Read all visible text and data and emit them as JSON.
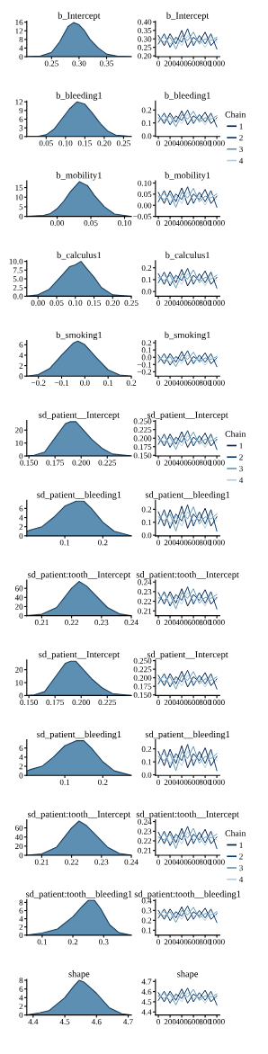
{
  "chart_data": [
    {
      "type": "area",
      "title": "b_Intercept",
      "x": [
        0.205,
        0.23,
        0.25,
        0.265,
        0.28,
        0.29,
        0.3,
        0.31,
        0.32,
        0.335,
        0.35,
        0.37,
        0.395
      ],
      "series": [
        {
          "color": "#5c8fb1",
          "values": [
            0,
            0.3,
            2,
            7,
            14,
            15.8,
            14.8,
            12,
            8,
            4,
            1.2,
            0.2,
            0
          ]
        }
      ],
      "xlim": [
        0.205,
        0.395
      ],
      "ylim": [
        0,
        16.5
      ],
      "xticks": [
        {
          "value": 0.25,
          "label": "0.25"
        },
        {
          "value": 0.3,
          "label": "0.30"
        },
        {
          "value": 0.35,
          "label": "0.35"
        }
      ],
      "yticks": [
        0,
        4,
        8,
        12,
        16
      ]
    },
    {
      "type": "line",
      "title": "b_Intercept",
      "x": [
        0,
        100,
        200,
        300,
        400,
        500,
        600,
        700,
        800,
        900,
        1000
      ],
      "series": [
        {
          "color": "#011f4b",
          "values": [
            0.32,
            0.26,
            0.33,
            0.27,
            0.35,
            0.25,
            0.31,
            0.28,
            0.34,
            0.26,
            0.3
          ]
        },
        {
          "color": "#03396c",
          "values": [
            0.27,
            0.33,
            0.25,
            0.31,
            0.28,
            0.36,
            0.26,
            0.32,
            0.27,
            0.33,
            0.24
          ]
        },
        {
          "color": "#6497b1",
          "values": [
            0.3,
            0.28,
            0.31,
            0.24,
            0.32,
            0.29,
            0.34,
            0.27,
            0.3,
            0.29,
            0.31
          ]
        },
        {
          "color": "#b3cde0",
          "values": [
            0.29,
            0.31,
            0.27,
            0.3,
            0.26,
            0.32,
            0.28,
            0.3,
            0.25,
            0.31,
            0.28
          ]
        }
      ],
      "xlim": [
        -50,
        1050
      ],
      "ylim": [
        0.195,
        0.405
      ],
      "xticks": [
        0,
        200,
        400,
        600,
        800,
        1000
      ],
      "yticks": [
        {
          "value": 0.2,
          "label": "0.20"
        },
        {
          "value": 0.25,
          "label": "0.25"
        },
        {
          "value": 0.3,
          "label": "0.30"
        },
        {
          "value": 0.35,
          "label": "0.35"
        },
        {
          "value": 0.4,
          "label": "0.40"
        }
      ]
    },
    {
      "type": "area",
      "title": "b_bleeding1",
      "x": [
        0,
        0.03,
        0.05,
        0.07,
        0.09,
        0.11,
        0.13,
        0.15,
        0.17,
        0.19,
        0.21,
        0.23,
        0.27
      ],
      "series": [
        {
          "color": "#5c8fb1",
          "values": [
            0,
            0.1,
            0.6,
            2.5,
            6,
            9.5,
            12,
            11.2,
            8,
            4.5,
            1.8,
            0.5,
            0
          ]
        }
      ],
      "xlim": [
        0,
        0.27
      ],
      "ylim": [
        0,
        12.3
      ],
      "xticks": [
        {
          "value": 0.05,
          "label": "0.05"
        },
        {
          "value": 0.1,
          "label": "0.10"
        },
        {
          "value": 0.15,
          "label": "0.15"
        },
        {
          "value": 0.2,
          "label": "0.20"
        },
        {
          "value": 0.25,
          "label": "0.25"
        }
      ],
      "yticks": [
        0,
        3,
        6,
        9,
        12
      ]
    },
    {
      "type": "line",
      "title": "b_bleeding1",
      "x": [
        0,
        100,
        200,
        300,
        400,
        500,
        600,
        700,
        800,
        900,
        1000
      ],
      "series": [
        {
          "name": "1",
          "color": "#011f4b",
          "values": [
            0.165,
            0.095,
            0.176,
            0.106,
            0.193,
            0.085,
            0.155,
            0.12,
            0.183,
            0.095,
            0.14
          ]
        },
        {
          "name": "2",
          "color": "#03396c",
          "values": [
            0.106,
            0.176,
            0.085,
            0.155,
            0.12,
            0.2,
            0.095,
            0.165,
            0.106,
            0.176,
            0.07
          ]
        },
        {
          "name": "3",
          "color": "#6497b1",
          "values": [
            0.14,
            0.12,
            0.155,
            0.07,
            0.165,
            0.13,
            0.19,
            0.106,
            0.14,
            0.13,
            0.155
          ]
        },
        {
          "name": "4",
          "color": "#b3cde0",
          "values": [
            0.13,
            0.155,
            0.106,
            0.14,
            0.095,
            0.165,
            0.12,
            0.14,
            0.085,
            0.155,
            0.12
          ]
        }
      ],
      "xlim": [
        -50,
        1050
      ],
      "ylim": [
        -0.005,
        0.27
      ],
      "xticks": [
        0,
        200,
        400,
        600,
        800,
        1000
      ],
      "yticks": [
        {
          "value": 0,
          "label": "0.0"
        },
        0.1,
        0.2
      ],
      "legend": "right",
      "legend_title": "Chain"
    },
    {
      "type": "area",
      "title": "b_mobility1",
      "x": [
        -0.045,
        -0.02,
        -0.01,
        0,
        0.01,
        0.02,
        0.033,
        0.045,
        0.055,
        0.07,
        0.085,
        0.11
      ],
      "series": [
        {
          "color": "#5c8fb1",
          "values": [
            0,
            0.5,
            1.5,
            4,
            8,
            13,
            18,
            16,
            11,
            5,
            1.2,
            0
          ]
        }
      ],
      "xlim": [
        -0.045,
        0.11
      ],
      "ylim": [
        0,
        18.5
      ],
      "xticks": [
        {
          "value": 0,
          "label": "0.00"
        },
        {
          "value": 0.05,
          "label": "0.05"
        },
        {
          "value": 0.1,
          "label": "0.10"
        }
      ],
      "yticks": [
        0,
        5,
        10,
        15
      ]
    },
    {
      "type": "line",
      "title": "b_mobility1",
      "x": [
        0,
        100,
        200,
        300,
        400,
        500,
        600,
        700,
        800,
        900,
        1000
      ],
      "series": [
        {
          "color": "#011f4b",
          "values": [
            0.058,
            0.008,
            0.066,
            0.016,
            0.078,
            0.001,
            0.051,
            0.026,
            0.071,
            0.008,
            0.041
          ]
        },
        {
          "color": "#03396c",
          "values": [
            0.016,
            0.066,
            0.001,
            0.051,
            0.026,
            0.083,
            0.008,
            0.058,
            0.016,
            0.066,
            -0.009
          ]
        },
        {
          "color": "#6497b1",
          "values": [
            0.041,
            0.026,
            0.051,
            -0.009,
            0.058,
            0.033,
            0.076,
            0.016,
            0.041,
            0.033,
            0.051
          ]
        },
        {
          "color": "#b3cde0",
          "values": [
            0.033,
            0.051,
            0.016,
            0.041,
            0.008,
            0.058,
            0.026,
            0.041,
            0.001,
            0.051,
            0.026
          ]
        }
      ],
      "xlim": [
        -50,
        1050
      ],
      "ylim": [
        -0.05,
        0.11
      ],
      "xticks": [
        0,
        200,
        400,
        600,
        800,
        1000
      ],
      "yticks": [
        {
          "value": -0.05,
          "label": "−0.05"
        },
        {
          "value": 0,
          "label": "0.00"
        },
        {
          "value": 0.05,
          "label": "0.05"
        },
        {
          "value": 0.1,
          "label": "0.10"
        }
      ]
    },
    {
      "type": "area",
      "title": "b_calculus1",
      "x": [
        -0.03,
        0,
        0.03,
        0.06,
        0.085,
        0.1,
        0.115,
        0.13,
        0.15,
        0.17,
        0.2,
        0.25
      ],
      "series": [
        {
          "color": "#5c8fb1",
          "values": [
            0,
            0.4,
            2,
            5.5,
            8.5,
            9,
            10,
            8,
            5.5,
            2.5,
            0.4,
            0
          ]
        }
      ],
      "xlim": [
        -0.03,
        0.25
      ],
      "ylim": [
        0,
        10.2
      ],
      "xticks": [
        {
          "value": 0,
          "label": "0.00"
        },
        {
          "value": 0.05,
          "label": "0.05"
        },
        {
          "value": 0.1,
          "label": "0.10"
        },
        {
          "value": 0.15,
          "label": "0.15"
        },
        {
          "value": 0.2,
          "label": "0.20"
        },
        {
          "value": 0.25,
          "label": "0.25"
        }
      ],
      "yticks": [
        {
          "value": 0,
          "label": "0.0"
        },
        2.5,
        {
          "value": 5,
          "label": "5.0"
        },
        7.5,
        {
          "value": 10,
          "label": "10.0"
        }
      ]
    },
    {
      "type": "line",
      "title": "b_calculus1",
      "x": [
        0,
        100,
        200,
        300,
        400,
        500,
        600,
        700,
        800,
        900,
        1000
      ],
      "series": [
        {
          "color": "#011f4b",
          "values": [
            0.15,
            0.06,
            0.164,
            0.074,
            0.186,
            0.047,
            0.137,
            0.092,
            0.173,
            0.06,
            0.119
          ]
        },
        {
          "color": "#03396c",
          "values": [
            0.074,
            0.164,
            0.047,
            0.137,
            0.092,
            0.195,
            0.06,
            0.15,
            0.074,
            0.164,
            0.029
          ]
        },
        {
          "color": "#6497b1",
          "values": [
            0.119,
            0.092,
            0.137,
            0.029,
            0.15,
            0.105,
            0.182,
            0.074,
            0.119,
            0.105,
            0.137
          ]
        },
        {
          "color": "#b3cde0",
          "values": [
            0.105,
            0.137,
            0.074,
            0.119,
            0.06,
            0.15,
            0.092,
            0.119,
            0.047,
            0.137,
            0.092
          ]
        }
      ],
      "xlim": [
        -50,
        1050
      ],
      "ylim": [
        -0.04,
        0.26
      ],
      "xticks": [
        0,
        200,
        400,
        600,
        800,
        1000
      ],
      "yticks": [
        {
          "value": 0,
          "label": "0.0"
        },
        0.1,
        0.2
      ]
    },
    {
      "type": "area",
      "title": "b_smoking1",
      "x": [
        -0.25,
        -0.2,
        -0.15,
        -0.1,
        -0.05,
        -0.03,
        0,
        0.05,
        0.1,
        0.15,
        0.2
      ],
      "series": [
        {
          "color": "#5c8fb1",
          "values": [
            0,
            0.3,
            1.5,
            4,
            6.3,
            6.7,
            6,
            3.5,
            1.2,
            0.2,
            0
          ]
        }
      ],
      "xlim": [
        -0.25,
        0.2
      ],
      "ylim": [
        0,
        6.8
      ],
      "xticks": [
        {
          "value": -0.2,
          "label": "−0.2"
        },
        {
          "value": -0.1,
          "label": "−0.1"
        },
        {
          "value": 0,
          "label": "0.0"
        },
        {
          "value": 0.1,
          "label": "0.1"
        },
        {
          "value": 0.2,
          "label": "0.2"
        }
      ],
      "yticks": [
        0,
        2,
        4,
        6
      ]
    },
    {
      "type": "line",
      "title": "b_smoking1",
      "x": [
        0,
        100,
        200,
        300,
        400,
        500,
        600,
        700,
        800,
        900,
        1000
      ],
      "series": [
        {
          "color": "#011f4b",
          "values": [
            0.03,
            -0.09,
            0.05,
            -0.07,
            0.08,
            -0.11,
            0.01,
            -0.05,
            0.06,
            -0.09,
            -0.01
          ]
        },
        {
          "color": "#03396c",
          "values": [
            -0.07,
            0.05,
            -0.11,
            0.01,
            -0.05,
            0.09,
            -0.09,
            0.03,
            -0.07,
            0.05,
            -0.13
          ]
        },
        {
          "color": "#6497b1",
          "values": [
            -0.01,
            -0.05,
            0.01,
            -0.13,
            0.03,
            -0.03,
            0.07,
            -0.07,
            -0.01,
            -0.03,
            0.01
          ]
        },
        {
          "color": "#b3cde0",
          "values": [
            -0.03,
            0.01,
            -0.07,
            -0.01,
            -0.09,
            0.03,
            -0.05,
            -0.01,
            -0.11,
            0.01,
            -0.05
          ]
        }
      ],
      "xlim": [
        -50,
        1050
      ],
      "ylim": [
        -0.26,
        0.23
      ],
      "xticks": [
        0,
        200,
        400,
        600,
        800,
        1000
      ],
      "yticks": [
        {
          "value": -0.2,
          "label": "−0.2"
        },
        {
          "value": -0.1,
          "label": "−0.1"
        },
        {
          "value": 0,
          "label": "0.0"
        },
        {
          "value": 0.1,
          "label": "0.1"
        },
        {
          "value": 0.2,
          "label": "0.2"
        }
      ]
    },
    {
      "type": "area",
      "title": "sd_patient__Intercept",
      "x": [
        0.148,
        0.155,
        0.165,
        0.175,
        0.185,
        0.19,
        0.195,
        0.2,
        0.21,
        0.22,
        0.23,
        0.248
      ],
      "series": [
        {
          "color": "#5c8fb1",
          "values": [
            0,
            0.5,
            3,
            14,
            25,
            26.5,
            26.5,
            22,
            13,
            6,
            1.5,
            0
          ]
        }
      ],
      "xlim": [
        0.148,
        0.248
      ],
      "ylim": [
        0,
        27.5
      ],
      "xticks": [
        {
          "value": 0.15,
          "label": "0.150"
        },
        {
          "value": 0.175,
          "label": "0.175"
        },
        {
          "value": 0.2,
          "label": "0.200"
        },
        {
          "value": 0.225,
          "label": "0.225"
        }
      ],
      "yticks": [
        0,
        10,
        20
      ]
    },
    {
      "type": "line",
      "title": "sd_patient__Intercept",
      "x": [
        0,
        100,
        200,
        300,
        400,
        500,
        600,
        700,
        800,
        900,
        1000
      ],
      "series": [
        {
          "name": "1",
          "color": "#011f4b",
          "values": [
            0.207,
            0.177,
            0.212,
            0.182,
            0.219,
            0.173,
            0.203,
            0.188,
            0.215,
            0.177,
            0.197
          ]
        },
        {
          "name": "2",
          "color": "#03396c",
          "values": [
            0.182,
            0.212,
            0.173,
            0.203,
            0.188,
            0.222,
            0.177,
            0.207,
            0.182,
            0.212,
            0.167
          ]
        },
        {
          "name": "3",
          "color": "#6497b1",
          "values": [
            0.197,
            0.188,
            0.203,
            0.167,
            0.207,
            0.192,
            0.218,
            0.182,
            0.197,
            0.192,
            0.203
          ]
        },
        {
          "name": "4",
          "color": "#b3cde0",
          "values": [
            0.192,
            0.203,
            0.182,
            0.197,
            0.177,
            0.207,
            0.188,
            0.197,
            0.173,
            0.203,
            0.188
          ]
        }
      ],
      "xlim": [
        -50,
        1050
      ],
      "ylim": [
        0.148,
        0.252
      ],
      "xticks": [
        0,
        200,
        400,
        600,
        800,
        1000
      ],
      "yticks": [
        {
          "value": 0.15,
          "label": "0.150"
        },
        {
          "value": 0.175,
          "label": "0.175"
        },
        {
          "value": 0.2,
          "label": "0.200"
        },
        {
          "value": 0.225,
          "label": "0.225"
        },
        {
          "value": 0.25,
          "label": "0.250"
        }
      ],
      "legend": "right",
      "legend_title": "Chain"
    },
    {
      "type": "area",
      "title": "sd_patient__bleeding1",
      "x": [
        0,
        0.01,
        0.04,
        0.07,
        0.1,
        0.13,
        0.15,
        0.17,
        0.2,
        0.23,
        0.275
      ],
      "series": [
        {
          "color": "#5c8fb1",
          "values": [
            1,
            1.3,
            2,
            4,
            6.5,
            7.6,
            7.6,
            6,
            3,
            1,
            0
          ]
        }
      ],
      "xlim": [
        0,
        0.275
      ],
      "ylim": [
        0,
        7.8
      ],
      "xticks": [
        0.1,
        0.2
      ],
      "yticks": [
        0,
        2,
        4,
        6
      ]
    },
    {
      "type": "line",
      "title": "sd_patient__bleeding1",
      "x": [
        0,
        100,
        200,
        300,
        400,
        500,
        600,
        700,
        800,
        900,
        1000
      ],
      "series": [
        {
          "color": "#011f4b",
          "values": [
            0.18,
            0.07,
            0.197,
            0.087,
            0.224,
            0.054,
            0.164,
            0.109,
            0.208,
            0.07,
            0.142
          ]
        },
        {
          "color": "#03396c",
          "values": [
            0.087,
            0.197,
            0.054,
            0.164,
            0.109,
            0.235,
            0.07,
            0.18,
            0.087,
            0.197,
            0.032
          ]
        },
        {
          "color": "#6497b1",
          "values": [
            0.142,
            0.109,
            0.164,
            0.032,
            0.18,
            0.125,
            0.219,
            0.087,
            0.142,
            0.125,
            0.164
          ]
        },
        {
          "color": "#b3cde0",
          "values": [
            0.125,
            0.164,
            0.087,
            0.142,
            0.07,
            0.18,
            0.109,
            0.142,
            0.054,
            0.164,
            0.109
          ]
        }
      ],
      "xlim": [
        -50,
        1050
      ],
      "ylim": [
        -0.005,
        0.27
      ],
      "xticks": [
        0,
        200,
        400,
        600,
        800,
        1000
      ],
      "yticks": [
        {
          "value": 0,
          "label": "0.0"
        },
        0.1,
        0.2
      ]
    },
    {
      "type": "area",
      "title": "sd_patient:tooth__Intercept",
      "x": [
        0.205,
        0.21,
        0.215,
        0.22,
        0.2225,
        0.225,
        0.228,
        0.232,
        0.236,
        0.24
      ],
      "series": [
        {
          "color": "#5c8fb1",
          "values": [
            0,
            3,
            18,
            60,
            75,
            65,
            45,
            18,
            4,
            0
          ]
        }
      ],
      "xlim": [
        0.205,
        0.24
      ],
      "ylim": [
        0,
        78
      ],
      "xticks": [
        0.21,
        0.22,
        0.23,
        0.24
      ],
      "yticks": [
        0,
        20,
        40,
        60
      ]
    },
    {
      "type": "line",
      "title": "sd_patient:tooth__Intercept",
      "x": [
        0,
        100,
        200,
        300,
        400,
        500,
        600,
        700,
        800,
        900,
        1000
      ],
      "series": [
        {
          "color": "#011f4b",
          "values": [
            0.229,
            0.217,
            0.23,
            0.218,
            0.233,
            0.215,
            0.227,
            0.221,
            0.232,
            0.217,
            0.224
          ]
        },
        {
          "color": "#03396c",
          "values": [
            0.218,
            0.23,
            0.215,
            0.227,
            0.221,
            0.235,
            0.217,
            0.229,
            0.218,
            0.23,
            0.212
          ]
        },
        {
          "color": "#6497b1",
          "values": [
            0.224,
            0.221,
            0.227,
            0.212,
            0.229,
            0.223,
            0.233,
            0.218,
            0.224,
            0.223,
            0.227
          ]
        },
        {
          "color": "#b3cde0",
          "values": [
            0.223,
            0.227,
            0.218,
            0.224,
            0.217,
            0.229,
            0.221,
            0.224,
            0.215,
            0.227,
            0.221
          ]
        }
      ],
      "xlim": [
        -50,
        1050
      ],
      "ylim": [
        0.205,
        0.242
      ],
      "xticks": [
        0,
        200,
        400,
        600,
        800,
        1000
      ],
      "yticks": [
        0.21,
        0.22,
        0.23,
        0.24
      ]
    },
    {
      "type": "area",
      "title": "sd_patient__Intercept",
      "x": [
        0.148,
        0.155,
        0.165,
        0.175,
        0.185,
        0.19,
        0.195,
        0.2,
        0.21,
        0.22,
        0.23,
        0.248
      ],
      "series": [
        {
          "color": "#5c8fb1",
          "values": [
            0,
            0.5,
            3,
            14,
            25,
            26.5,
            26.5,
            22,
            13,
            6,
            1.5,
            0
          ]
        }
      ],
      "xlim": [
        0.148,
        0.248
      ],
      "ylim": [
        0,
        27.5
      ],
      "xticks": [
        {
          "value": 0.15,
          "label": "0.150"
        },
        {
          "value": 0.175,
          "label": "0.175"
        },
        {
          "value": 0.2,
          "label": "0.200"
        },
        {
          "value": 0.225,
          "label": "0.225"
        }
      ],
      "yticks": [
        0,
        10,
        20
      ]
    },
    {
      "type": "line",
      "title": "sd_patient__Intercept",
      "x": [
        0,
        100,
        200,
        300,
        400,
        500,
        600,
        700,
        800,
        900,
        1000
      ],
      "series": [
        {
          "color": "#011f4b",
          "values": [
            0.207,
            0.177,
            0.212,
            0.182,
            0.219,
            0.173,
            0.203,
            0.188,
            0.215,
            0.177,
            0.197
          ]
        },
        {
          "color": "#03396c",
          "values": [
            0.182,
            0.212,
            0.173,
            0.203,
            0.188,
            0.222,
            0.177,
            0.207,
            0.182,
            0.212,
            0.167
          ]
        },
        {
          "color": "#6497b1",
          "values": [
            0.197,
            0.188,
            0.203,
            0.167,
            0.207,
            0.192,
            0.218,
            0.182,
            0.197,
            0.192,
            0.203
          ]
        },
        {
          "color": "#b3cde0",
          "values": [
            0.192,
            0.203,
            0.182,
            0.197,
            0.177,
            0.207,
            0.188,
            0.197,
            0.173,
            0.203,
            0.188
          ]
        }
      ],
      "xlim": [
        -50,
        1050
      ],
      "ylim": [
        0.148,
        0.252
      ],
      "xticks": [
        0,
        200,
        400,
        600,
        800,
        1000
      ],
      "yticks": [
        {
          "value": 0.15,
          "label": "0.150"
        },
        {
          "value": 0.175,
          "label": "0.175"
        },
        {
          "value": 0.2,
          "label": "0.200"
        },
        {
          "value": 0.225,
          "label": "0.225"
        },
        {
          "value": 0.25,
          "label": "0.250"
        }
      ]
    },
    {
      "type": "area",
      "title": "sd_patient__bleeding1",
      "x": [
        0,
        0.01,
        0.04,
        0.07,
        0.1,
        0.13,
        0.15,
        0.17,
        0.2,
        0.23,
        0.275
      ],
      "series": [
        {
          "color": "#5c8fb1",
          "values": [
            1,
            1.3,
            2,
            4,
            6.5,
            7.6,
            7.6,
            6,
            3,
            1,
            0
          ]
        }
      ],
      "xlim": [
        0,
        0.275
      ],
      "ylim": [
        0,
        7.8
      ],
      "xticks": [
        0.1,
        0.2
      ],
      "yticks": [
        0,
        2,
        4,
        6
      ]
    },
    {
      "type": "line",
      "title": "sd_patient__bleeding1",
      "x": [
        0,
        100,
        200,
        300,
        400,
        500,
        600,
        700,
        800,
        900,
        1000
      ],
      "series": [
        {
          "color": "#011f4b",
          "values": [
            0.18,
            0.07,
            0.197,
            0.087,
            0.224,
            0.054,
            0.164,
            0.109,
            0.208,
            0.07,
            0.142
          ]
        },
        {
          "color": "#03396c",
          "values": [
            0.087,
            0.197,
            0.054,
            0.164,
            0.109,
            0.235,
            0.07,
            0.18,
            0.087,
            0.197,
            0.032
          ]
        },
        {
          "color": "#6497b1",
          "values": [
            0.142,
            0.109,
            0.164,
            0.032,
            0.18,
            0.125,
            0.219,
            0.087,
            0.142,
            0.125,
            0.164
          ]
        },
        {
          "color": "#b3cde0",
          "values": [
            0.125,
            0.164,
            0.087,
            0.142,
            0.07,
            0.18,
            0.109,
            0.142,
            0.054,
            0.164,
            0.109
          ]
        }
      ],
      "xlim": [
        -50,
        1050
      ],
      "ylim": [
        -0.005,
        0.27
      ],
      "xticks": [
        0,
        200,
        400,
        600,
        800,
        1000
      ],
      "yticks": [
        {
          "value": 0,
          "label": "0.0"
        },
        0.1,
        0.2
      ]
    },
    {
      "type": "area",
      "title": "sd_patient:tooth__Intercept",
      "x": [
        0.205,
        0.21,
        0.215,
        0.22,
        0.2225,
        0.225,
        0.228,
        0.232,
        0.236,
        0.24
      ],
      "series": [
        {
          "color": "#5c8fb1",
          "values": [
            0,
            3,
            18,
            60,
            75,
            65,
            45,
            18,
            4,
            0
          ]
        }
      ],
      "xlim": [
        0.205,
        0.24
      ],
      "ylim": [
        0,
        78
      ],
      "xticks": [
        0.21,
        0.22,
        0.23,
        0.24
      ],
      "yticks": [
        0,
        20,
        40,
        60
      ]
    },
    {
      "type": "line",
      "title": "sd_patient:tooth__Intercept",
      "x": [
        0,
        100,
        200,
        300,
        400,
        500,
        600,
        700,
        800,
        900,
        1000
      ],
      "series": [
        {
          "name": "1",
          "color": "#011f4b",
          "values": [
            0.229,
            0.217,
            0.23,
            0.218,
            0.233,
            0.215,
            0.227,
            0.221,
            0.232,
            0.217,
            0.224
          ]
        },
        {
          "name": "2",
          "color": "#03396c",
          "values": [
            0.218,
            0.23,
            0.215,
            0.227,
            0.221,
            0.235,
            0.217,
            0.229,
            0.218,
            0.23,
            0.212
          ]
        },
        {
          "name": "3",
          "color": "#6497b1",
          "values": [
            0.224,
            0.221,
            0.227,
            0.212,
            0.229,
            0.223,
            0.233,
            0.218,
            0.224,
            0.223,
            0.227
          ]
        },
        {
          "name": "4",
          "color": "#b3cde0",
          "values": [
            0.223,
            0.227,
            0.218,
            0.224,
            0.217,
            0.229,
            0.221,
            0.224,
            0.215,
            0.227,
            0.221
          ]
        }
      ],
      "xlim": [
        -50,
        1050
      ],
      "ylim": [
        0.205,
        0.242
      ],
      "xticks": [
        0,
        200,
        400,
        600,
        800,
        1000
      ],
      "yticks": [
        0.21,
        0.22,
        0.23,
        0.24
      ],
      "legend": "right",
      "legend_title": "Chain"
    },
    {
      "type": "area",
      "title": "sd_patient:tooth__bleeding1",
      "x": [
        0.05,
        0.1,
        0.15,
        0.2,
        0.23,
        0.25,
        0.27,
        0.29,
        0.32,
        0.35,
        0.39
      ],
      "series": [
        {
          "color": "#5c8fb1",
          "values": [
            0,
            0.5,
            1.5,
            4.5,
            7,
            8.5,
            8.5,
            6.5,
            2.5,
            0.6,
            0
          ]
        }
      ],
      "xlim": [
        0.05,
        0.39
      ],
      "ylim": [
        0,
        8.7
      ],
      "xticks": [
        0.1,
        0.2,
        0.3
      ],
      "yticks": [
        0,
        2,
        4,
        6,
        8
      ]
    },
    {
      "type": "line",
      "title": "sd_patient:tooth__bleeding1",
      "x": [
        0,
        100,
        200,
        300,
        400,
        500,
        600,
        700,
        800,
        900,
        1000
      ],
      "series": [
        {
          "color": "#011f4b",
          "values": [
            0.3,
            0.21,
            0.314,
            0.224,
            0.336,
            0.197,
            0.287,
            0.242,
            0.323,
            0.21,
            0.269
          ]
        },
        {
          "color": "#03396c",
          "values": [
            0.224,
            0.314,
            0.197,
            0.287,
            0.242,
            0.345,
            0.21,
            0.3,
            0.224,
            0.314,
            0.179
          ]
        },
        {
          "color": "#6497b1",
          "values": [
            0.269,
            0.242,
            0.287,
            0.179,
            0.3,
            0.255,
            0.332,
            0.224,
            0.269,
            0.255,
            0.287
          ]
        },
        {
          "color": "#b3cde0",
          "values": [
            0.255,
            0.287,
            0.224,
            0.269,
            0.21,
            0.3,
            0.242,
            0.269,
            0.197,
            0.287,
            0.242
          ]
        }
      ],
      "xlim": [
        -50,
        1050
      ],
      "ylim": [
        0.05,
        0.41
      ],
      "xticks": [
        0,
        200,
        400,
        600,
        800,
        1000
      ],
      "yticks": [
        0.1,
        0.2,
        0.3,
        0.4
      ]
    },
    {
      "type": "area",
      "title": "shape",
      "x": [
        4.38,
        4.42,
        4.45,
        4.5,
        4.53,
        4.545,
        4.56,
        4.6,
        4.64,
        4.68,
        4.71
      ],
      "series": [
        {
          "color": "#5c8fb1",
          "values": [
            0,
            0.5,
            1,
            4,
            6.8,
            8,
            7.6,
            5,
            1.7,
            0.3,
            0
          ]
        }
      ],
      "xlim": [
        4.38,
        4.71
      ],
      "ylim": [
        0,
        8.2
      ],
      "xticks": [
        4.4,
        4.5,
        4.6,
        4.7
      ],
      "yticks": [
        0,
        2,
        4,
        6,
        8
      ]
    },
    {
      "type": "line",
      "title": "shape",
      "x": [
        0,
        100,
        200,
        300,
        400,
        500,
        600,
        700,
        800,
        900,
        1000
      ],
      "series": [
        {
          "color": "#011f4b",
          "values": [
            4.59,
            4.5,
            4.604,
            4.514,
            4.626,
            4.487,
            4.577,
            4.532,
            4.613,
            4.5,
            4.559
          ]
        },
        {
          "color": "#03396c",
          "values": [
            4.514,
            4.604,
            4.487,
            4.577,
            4.532,
            4.635,
            4.5,
            4.59,
            4.514,
            4.604,
            4.469
          ]
        },
        {
          "color": "#6497b1",
          "values": [
            4.559,
            4.532,
            4.577,
            4.469,
            4.59,
            4.545,
            4.622,
            4.514,
            4.559,
            4.545,
            4.577
          ]
        },
        {
          "color": "#b3cde0",
          "values": [
            4.545,
            4.577,
            4.514,
            4.559,
            4.5,
            4.59,
            4.532,
            4.559,
            4.487,
            4.577,
            4.532
          ]
        }
      ],
      "xlim": [
        -50,
        1050
      ],
      "ylim": [
        4.37,
        4.72
      ],
      "xticks": [
        0,
        200,
        400,
        600,
        800,
        1000
      ],
      "yticks": [
        4.4,
        4.5,
        4.6,
        4.7
      ]
    }
  ]
}
